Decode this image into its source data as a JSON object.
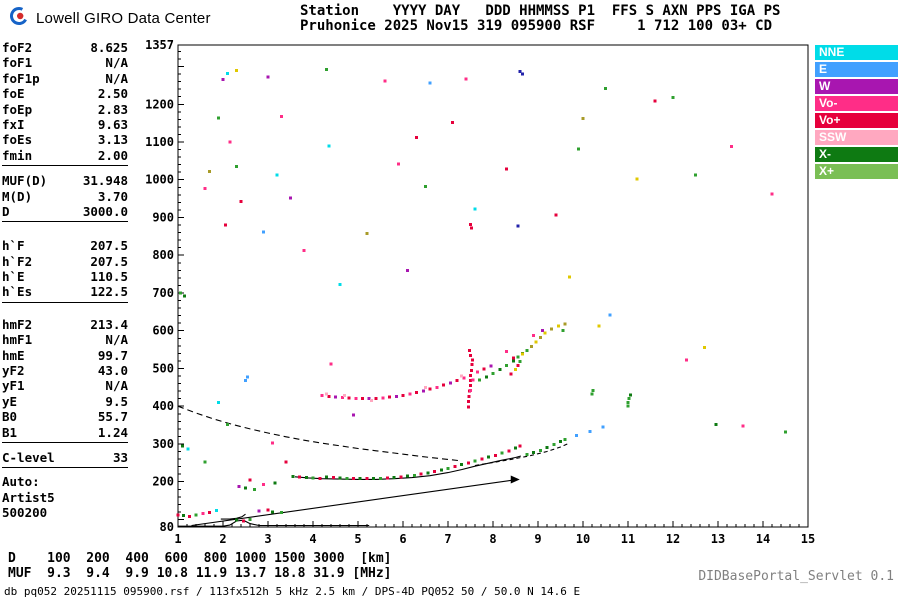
{
  "branding": {
    "title": "Lowell GIRO Data Center"
  },
  "station_header": {
    "line1": "Station    YYYY DAY   DDD HHMMSS P1  FFS S AXN PPS IGA PS",
    "line2": "Pruhonice 2025 Nov15 319 095900 RSF     1 712 100 03+ CD"
  },
  "parameters": {
    "groups": [
      {
        "rows": [
          [
            "foF2",
            "8.625"
          ],
          [
            "foF1",
            "N/A"
          ],
          [
            "foF1p",
            "N/A"
          ],
          [
            "foE",
            "2.50"
          ],
          [
            "foEp",
            "2.83"
          ],
          [
            "fxI",
            "9.63"
          ],
          [
            "foEs",
            "3.13"
          ],
          [
            "fmin",
            "2.00"
          ]
        ]
      },
      {
        "rows": [
          [
            "MUF(D)",
            "31.948"
          ],
          [
            "M(D)",
            "3.70"
          ],
          [
            "D",
            "3000.0"
          ]
        ]
      },
      {
        "rows": [
          [
            "h`F",
            "207.5"
          ],
          [
            "h`F2",
            "207.5"
          ],
          [
            "h`E",
            "110.5"
          ],
          [
            "h`Es",
            "122.5"
          ]
        ]
      },
      {
        "rows": [
          [
            "hmF2",
            "213.4"
          ],
          [
            "hmF1",
            "N/A"
          ],
          [
            "hmE",
            "99.7"
          ],
          [
            "yF2",
            "43.0"
          ],
          [
            "yF1",
            "N/A"
          ],
          [
            "yE",
            "9.5"
          ],
          [
            "B0",
            "55.7"
          ],
          [
            "B1",
            "1.24"
          ]
        ]
      },
      {
        "rows": [
          [
            "C-level",
            "33"
          ]
        ]
      },
      {
        "rows": [
          [
            "Auto:",
            ""
          ],
          [
            "Artist5",
            ""
          ],
          [
            "500200",
            ""
          ]
        ],
        "divider": false
      }
    ]
  },
  "legend": [
    {
      "label": "NNE",
      "color": "#00DCE8"
    },
    {
      "label": "E",
      "color": "#41A0FF"
    },
    {
      "label": "W",
      "color": "#A816B0"
    },
    {
      "label": "Vo-",
      "color": "#FF2D87"
    },
    {
      "label": "Vo+",
      "color": "#E6003C"
    },
    {
      "label": "SSW",
      "color": "#FFA8C0"
    },
    {
      "label": "X-",
      "color": "#0E7A12"
    },
    {
      "label": "X+",
      "color": "#7ABF55"
    }
  ],
  "footer": {
    "d_label": "D",
    "distances": [
      100,
      200,
      400,
      600,
      800,
      1000,
      1500,
      3000
    ],
    "d_unit": "[km]",
    "muf_label": "MUF",
    "mufs": [
      "9.3",
      "9.4",
      "9.9",
      "10.8",
      "11.9",
      "13.7",
      "18.8",
      "31.9"
    ],
    "muf_unit": "[MHz]",
    "status": "db pq052 20251115 095900.rsf / 113fx512h 5 kHz 2.5 km / DPS-4D PQ052 50 / 50.0 N 14.6 E",
    "servlet": "DIDBasePortal_Servlet 0.1"
  },
  "chart_data": {
    "type": "scatter",
    "x_range": [
      1,
      15
    ],
    "y_range": [
      80,
      1357
    ],
    "x_ticks": [
      1,
      2,
      3,
      4,
      5,
      6,
      7,
      8,
      9,
      10,
      11,
      12,
      13,
      14,
      15
    ],
    "y_tick_labels": [
      1357,
      1200,
      1100,
      1000,
      900,
      800,
      700,
      600,
      500,
      400,
      300,
      200,
      80
    ],
    "curves": [
      {
        "name": "muf3000-curve",
        "style": "dashed",
        "points": [
          [
            1,
            400
          ],
          [
            1.4,
            382
          ],
          [
            1.8,
            366
          ],
          [
            2.2,
            352
          ],
          [
            2.6,
            340
          ],
          [
            3.0,
            329
          ],
          [
            3.4,
            319
          ],
          [
            3.8,
            310
          ],
          [
            4.2,
            302
          ],
          [
            4.6,
            295
          ],
          [
            5.0,
            288
          ],
          [
            5.4,
            282
          ],
          [
            5.8,
            276
          ],
          [
            6.2,
            270
          ],
          [
            6.6,
            264
          ],
          [
            7.0,
            259
          ],
          [
            7.3,
            255
          ]
        ]
      },
      {
        "name": "f-trace",
        "style": "solid",
        "points": [
          [
            3.6,
            213
          ],
          [
            3.9,
            210
          ],
          [
            4.2,
            208
          ],
          [
            4.6,
            207
          ],
          [
            5.0,
            206
          ],
          [
            5.4,
            206
          ],
          [
            5.8,
            208
          ],
          [
            6.2,
            211
          ],
          [
            6.6,
            216
          ],
          [
            7.0,
            224
          ],
          [
            7.3,
            232
          ],
          [
            7.6,
            241
          ],
          [
            7.9,
            249
          ],
          [
            8.2,
            257
          ],
          [
            8.5,
            264
          ],
          [
            8.62,
            268
          ]
        ]
      },
      {
        "name": "x-trace",
        "style": "dashed-short",
        "points": [
          [
            7.6,
            243
          ],
          [
            8.0,
            251
          ],
          [
            8.4,
            259
          ],
          [
            8.8,
            268
          ],
          [
            9.2,
            280
          ],
          [
            9.5,
            292
          ],
          [
            9.65,
            300
          ]
        ]
      },
      {
        "name": "e-trace",
        "style": "solid",
        "points": [
          [
            1.95,
            101
          ],
          [
            2.15,
            101
          ],
          [
            2.3,
            103
          ],
          [
            2.42,
            107
          ],
          [
            2.5,
            114
          ]
        ]
      },
      {
        "name": "baseline",
        "style": "solid",
        "points": [
          [
            1,
            82
          ],
          [
            2.0,
            82
          ],
          [
            2.15,
            85
          ],
          [
            2.3,
            96
          ],
          [
            2.45,
            98
          ],
          [
            2.6,
            89
          ],
          [
            2.8,
            84
          ],
          [
            5.25,
            84
          ]
        ]
      },
      {
        "name": "hf-line",
        "style": "solid",
        "arrow": true,
        "points": [
          [
            1.3,
            84
          ],
          [
            8.55,
            206
          ]
        ]
      }
    ],
    "point_colors": {
      "r": "#E6003C",
      "p": "#FF2D87",
      "lp": "#FFA8C0",
      "m": "#A816B0",
      "c": "#00DCE8",
      "b": "#41A0FF",
      "n": "#2222AA",
      "dg": "#0E7A12",
      "g": "#2FA02F",
      "lg": "#7ABF55",
      "y": "#E0C800",
      "o": "#A89B28"
    },
    "points": [
      [
        4.3,
        213,
        "dg"
      ],
      [
        4.45,
        211,
        "r"
      ],
      [
        4.6,
        210,
        "dg"
      ],
      [
        4.75,
        209,
        "g"
      ],
      [
        4.9,
        208,
        "r"
      ],
      [
        5.05,
        208,
        "dg"
      ],
      [
        5.2,
        208,
        "r"
      ],
      [
        5.35,
        209,
        "dg"
      ],
      [
        5.5,
        209,
        "g"
      ],
      [
        5.65,
        210,
        "r"
      ],
      [
        5.8,
        211,
        "dg"
      ],
      [
        5.95,
        213,
        "r"
      ],
      [
        6.1,
        215,
        "dg"
      ],
      [
        6.25,
        217,
        "g"
      ],
      [
        6.4,
        220,
        "r"
      ],
      [
        6.55,
        223,
        "dg"
      ],
      [
        6.7,
        227,
        "r"
      ],
      [
        6.85,
        231,
        "dg"
      ],
      [
        7.0,
        235,
        "g"
      ],
      [
        7.15,
        240,
        "r"
      ],
      [
        7.3,
        245,
        "dg"
      ],
      [
        7.45,
        250,
        "r"
      ],
      [
        7.6,
        255,
        "g"
      ],
      [
        7.75,
        260,
        "r"
      ],
      [
        7.9,
        265,
        "dg"
      ],
      [
        8.05,
        270,
        "r"
      ],
      [
        8.2,
        276,
        "g"
      ],
      [
        8.35,
        282,
        "r"
      ],
      [
        8.5,
        289,
        "dg"
      ],
      [
        8.6,
        295,
        "r"
      ],
      [
        8.75,
        272,
        "g"
      ],
      [
        8.9,
        277,
        "dg"
      ],
      [
        9.05,
        283,
        "g"
      ],
      [
        9.2,
        290,
        "dg"
      ],
      [
        9.35,
        298,
        "g"
      ],
      [
        9.5,
        306,
        "dg"
      ],
      [
        9.6,
        312,
        "g"
      ],
      [
        9.85,
        322,
        "b"
      ],
      [
        10.15,
        333,
        "b"
      ],
      [
        10.45,
        345,
        "b"
      ],
      [
        3.55,
        214,
        "dg"
      ],
      [
        3.7,
        212,
        "r"
      ],
      [
        3.85,
        211,
        "dg"
      ],
      [
        4.0,
        210,
        "g"
      ],
      [
        4.15,
        209,
        "r"
      ],
      [
        2.35,
        187,
        "m"
      ],
      [
        2.5,
        183,
        "dg"
      ],
      [
        2.7,
        180,
        "g"
      ],
      [
        2.9,
        192,
        "p"
      ],
      [
        3.15,
        196,
        "dg"
      ],
      [
        2.6,
        205,
        "r"
      ],
      [
        4.2,
        428,
        "p"
      ],
      [
        4.35,
        426,
        "r"
      ],
      [
        4.5,
        424,
        "m"
      ],
      [
        4.65,
        423,
        "p"
      ],
      [
        4.8,
        422,
        "r"
      ],
      [
        4.95,
        421,
        "p"
      ],
      [
        5.1,
        420,
        "r"
      ],
      [
        5.25,
        420,
        "m"
      ],
      [
        5.4,
        421,
        "r"
      ],
      [
        5.55,
        422,
        "p"
      ],
      [
        5.7,
        424,
        "r"
      ],
      [
        5.85,
        426,
        "m"
      ],
      [
        6.0,
        429,
        "r"
      ],
      [
        6.15,
        432,
        "p"
      ],
      [
        6.3,
        436,
        "r"
      ],
      [
        6.45,
        440,
        "m"
      ],
      [
        6.6,
        445,
        "r"
      ],
      [
        6.75,
        450,
        "p"
      ],
      [
        6.9,
        456,
        "r"
      ],
      [
        7.05,
        462,
        "m"
      ],
      [
        7.2,
        468,
        "r"
      ],
      [
        7.35,
        475,
        "p"
      ],
      [
        7.5,
        482,
        "r"
      ],
      [
        7.65,
        490,
        "p"
      ],
      [
        7.8,
        498,
        "r"
      ],
      [
        7.95,
        507,
        "m"
      ],
      [
        4.3,
        433,
        "lp"
      ],
      [
        4.7,
        428,
        "lp"
      ],
      [
        5.3,
        415,
        "lp"
      ],
      [
        6.5,
        450,
        "lp"
      ],
      [
        7.3,
        480,
        "lp"
      ],
      [
        7.7,
        470,
        "g"
      ],
      [
        7.85,
        478,
        "dg"
      ],
      [
        8.0,
        487,
        "g"
      ],
      [
        8.15,
        497,
        "dg"
      ],
      [
        8.3,
        508,
        "g"
      ],
      [
        8.45,
        520,
        "dg"
      ],
      [
        8.55,
        530,
        "g"
      ],
      [
        8.65,
        540,
        "dg"
      ],
      [
        7.45,
        398,
        "r"
      ],
      [
        7.46,
        412,
        "r"
      ],
      [
        7.47,
        426,
        "r"
      ],
      [
        7.48,
        440,
        "r"
      ],
      [
        7.5,
        455,
        "r"
      ],
      [
        7.5,
        468,
        "r"
      ],
      [
        7.52,
        495,
        "r"
      ],
      [
        7.53,
        510,
        "r"
      ],
      [
        7.54,
        522,
        "r"
      ],
      [
        7.5,
        535,
        "r"
      ],
      [
        7.48,
        548,
        "r"
      ],
      [
        7.55,
        470,
        "p"
      ],
      [
        7.5,
        442,
        "p"
      ],
      [
        8.4,
        486,
        "r"
      ],
      [
        8.5,
        497,
        "y"
      ],
      [
        8.55,
        508,
        "r"
      ],
      [
        8.6,
        518,
        "g"
      ],
      [
        8.45,
        528,
        "r"
      ],
      [
        8.65,
        538,
        "y"
      ],
      [
        8.75,
        548,
        "g"
      ],
      [
        8.85,
        558,
        "o"
      ],
      [
        8.95,
        570,
        "y"
      ],
      [
        9.05,
        582,
        "o"
      ],
      [
        9.15,
        594,
        "y"
      ],
      [
        9.3,
        605,
        "o"
      ],
      [
        9.45,
        612,
        "y"
      ],
      [
        9.55,
        600,
        "g"
      ],
      [
        8.9,
        588,
        "p"
      ],
      [
        9.1,
        600,
        "m"
      ],
      [
        9.6,
        618,
        "o"
      ],
      [
        8.3,
        545,
        "p"
      ],
      [
        10.35,
        612,
        "y"
      ],
      [
        11.0,
        400,
        "g"
      ],
      [
        11.0,
        410,
        "g"
      ],
      [
        11.02,
        420,
        "g"
      ],
      [
        11.05,
        430,
        "dg"
      ],
      [
        10.2,
        432,
        "g"
      ],
      [
        10.22,
        441,
        "g"
      ],
      [
        1.0,
        112,
        "r"
      ],
      [
        1.12,
        110,
        "dg"
      ],
      [
        1.25,
        108,
        "r"
      ],
      [
        1.4,
        112,
        "g"
      ],
      [
        1.55,
        116,
        "p"
      ],
      [
        1.7,
        119,
        "r"
      ],
      [
        2.3,
        98,
        "dg"
      ],
      [
        2.45,
        96,
        "r"
      ],
      [
        2.6,
        100,
        "g"
      ],
      [
        2.8,
        122,
        "m"
      ],
      [
        3.0,
        125,
        "r"
      ],
      [
        3.1,
        120,
        "dg"
      ],
      [
        1.85,
        124,
        "c"
      ],
      [
        3.3,
        118,
        "g"
      ],
      [
        1.05,
        700,
        "g"
      ],
      [
        1.15,
        692,
        "dg"
      ],
      [
        1.1,
        295,
        "dg"
      ],
      [
        1.22,
        286,
        "c"
      ],
      [
        1.6,
        252,
        "g"
      ],
      [
        2.1,
        352,
        "g"
      ],
      [
        2.5,
        468,
        "b"
      ],
      [
        2.55,
        477,
        "b"
      ],
      [
        3.1,
        302,
        "p"
      ],
      [
        3.4,
        252,
        "r"
      ],
      [
        4.9,
        377,
        "m"
      ],
      [
        4.4,
        512,
        "p"
      ],
      [
        1.9,
        410,
        "c"
      ],
      [
        2.1,
        1282,
        "c"
      ],
      [
        2.3,
        1290,
        "y"
      ],
      [
        2.0,
        1265,
        "m"
      ],
      [
        3.0,
        1272,
        "m"
      ],
      [
        3.3,
        1168,
        "p"
      ],
      [
        1.9,
        1163,
        "g"
      ],
      [
        2.15,
        1100,
        "p"
      ],
      [
        1.7,
        1022,
        "o"
      ],
      [
        2.3,
        1035,
        "g"
      ],
      [
        3.2,
        1012,
        "c"
      ],
      [
        1.6,
        977,
        "p"
      ],
      [
        2.4,
        942,
        "r"
      ],
      [
        3.5,
        952,
        "m"
      ],
      [
        2.9,
        862,
        "b"
      ],
      [
        2.05,
        880,
        "r"
      ],
      [
        4.3,
        1292,
        "g"
      ],
      [
        4.35,
        1090,
        "c"
      ],
      [
        5.6,
        1262,
        "p"
      ],
      [
        5.2,
        857,
        "o"
      ],
      [
        5.9,
        1042,
        "p"
      ],
      [
        6.3,
        1112,
        "r"
      ],
      [
        6.6,
        1256,
        "b"
      ],
      [
        6.5,
        982,
        "g"
      ],
      [
        7.1,
        1152,
        "r"
      ],
      [
        7.4,
        1267,
        "p"
      ],
      [
        7.6,
        922,
        "c"
      ],
      [
        7.5,
        882,
        "r"
      ],
      [
        7.52,
        872,
        "r"
      ],
      [
        8.3,
        1028,
        "r"
      ],
      [
        8.6,
        1287,
        "n"
      ],
      [
        8.66,
        1280,
        "n"
      ],
      [
        8.55,
        878,
        "n"
      ],
      [
        9.4,
        907,
        "r"
      ],
      [
        9.9,
        1082,
        "g"
      ],
      [
        10.0,
        1162,
        "o"
      ],
      [
        10.5,
        1242,
        "g"
      ],
      [
        11.2,
        1002,
        "y"
      ],
      [
        11.6,
        1208,
        "r"
      ],
      [
        12.0,
        1218,
        "g"
      ],
      [
        12.5,
        1012,
        "g"
      ],
      [
        13.3,
        1088,
        "p"
      ],
      [
        14.2,
        962,
        "p"
      ],
      [
        12.95,
        352,
        "dg"
      ],
      [
        13.55,
        347,
        "p"
      ],
      [
        14.5,
        332,
        "g"
      ],
      [
        12.3,
        522,
        "p"
      ],
      [
        12.7,
        555,
        "y"
      ],
      [
        10.6,
        642,
        "b"
      ],
      [
        6.1,
        760,
        "m"
      ],
      [
        4.6,
        722,
        "c"
      ],
      [
        3.8,
        812,
        "p"
      ],
      [
        9.7,
        742,
        "y"
      ]
    ]
  }
}
